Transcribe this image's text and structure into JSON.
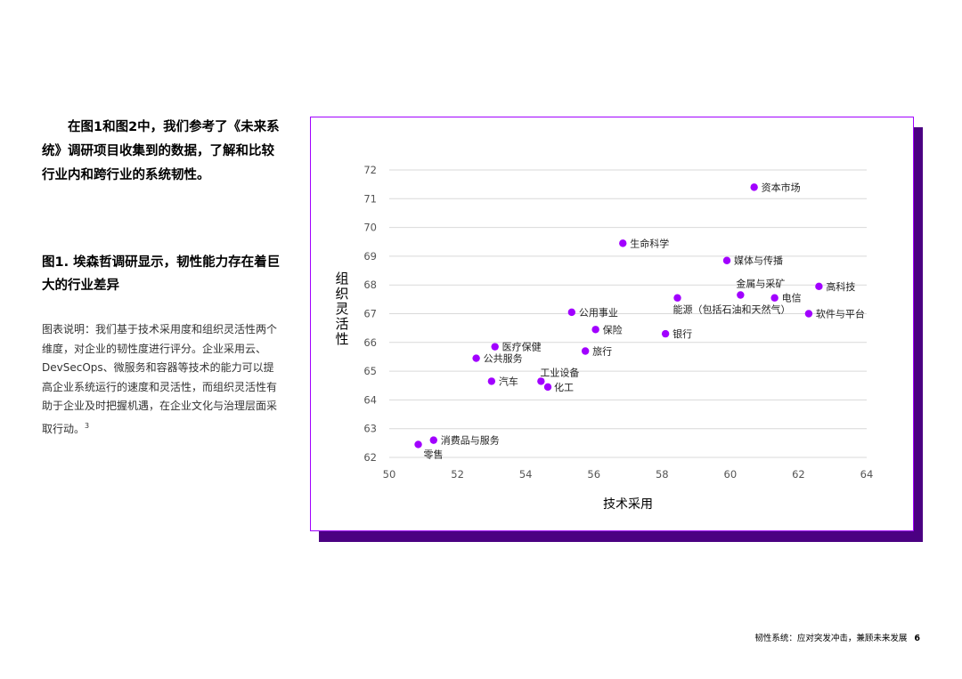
{
  "intro_text": "在图1和图2中，我们参考了《未来系统》调研项目收集到的数据，了解和比较行业内和跨行业的系统韧性。",
  "figure_title": "图1. 埃森哲调研显示，韧性能力存在着巨大的行业差异",
  "caption_text": "图表说明：我们基于技术采用度和组织灵活性两个维度，对企业的韧性度进行评分。企业采用云、DevSecOps、微服务和容器等技术的能力可以提高企业系统运行的速度和灵活性，而组织灵活性有助于企业及时把握机遇，在企业文化与治理层面采取行动。",
  "caption_ref": "3",
  "footer": {
    "text": "韧性系统：应对突发冲击，兼顾未来发展",
    "page": "6"
  },
  "colors": {
    "point": "#a100ff",
    "border": "#a100ff",
    "shadow": "#4b0082",
    "grid": "#d9d9d9"
  },
  "chart_data": {
    "type": "scatter",
    "xlabel": "技术采用",
    "ylabel": "组织灵活性",
    "xlim": [
      50,
      64
    ],
    "ylim": [
      62,
      72
    ],
    "xticks": [
      50,
      52,
      54,
      56,
      58,
      60,
      62,
      64
    ],
    "yticks": [
      62,
      63,
      64,
      65,
      66,
      67,
      68,
      69,
      70,
      71,
      72
    ],
    "grid": "horizontal",
    "points": [
      {
        "label": "资本市场",
        "x": 60.7,
        "y": 71.4
      },
      {
        "label": "生命科学",
        "x": 56.85,
        "y": 69.45
      },
      {
        "label": "媒体与传播",
        "x": 59.9,
        "y": 68.85
      },
      {
        "label": "高科技",
        "x": 62.6,
        "y": 67.95
      },
      {
        "label": "金属与采矿",
        "x": 60.3,
        "y": 67.65
      },
      {
        "label": "电信",
        "x": 61.3,
        "y": 67.55
      },
      {
        "label": "能源（包括石油和天然气）",
        "x": 58.45,
        "y": 67.55
      },
      {
        "label": "软件与平台",
        "x": 62.3,
        "y": 67.0
      },
      {
        "label": "公用事业",
        "x": 55.35,
        "y": 67.05
      },
      {
        "label": "保险",
        "x": 56.05,
        "y": 66.45
      },
      {
        "label": "银行",
        "x": 58.1,
        "y": 66.3
      },
      {
        "label": "医疗保健",
        "x": 53.1,
        "y": 65.85
      },
      {
        "label": "旅行",
        "x": 55.75,
        "y": 65.7
      },
      {
        "label": "公共服务",
        "x": 52.55,
        "y": 65.45
      },
      {
        "label": "汽车",
        "x": 53.0,
        "y": 64.65
      },
      {
        "label": "工业设备",
        "x": 54.45,
        "y": 64.65
      },
      {
        "label": "化工",
        "x": 54.65,
        "y": 64.45
      },
      {
        "label": "消费品与服务",
        "x": 51.3,
        "y": 62.6
      },
      {
        "label": "零售",
        "x": 50.85,
        "y": 62.45
      }
    ]
  }
}
